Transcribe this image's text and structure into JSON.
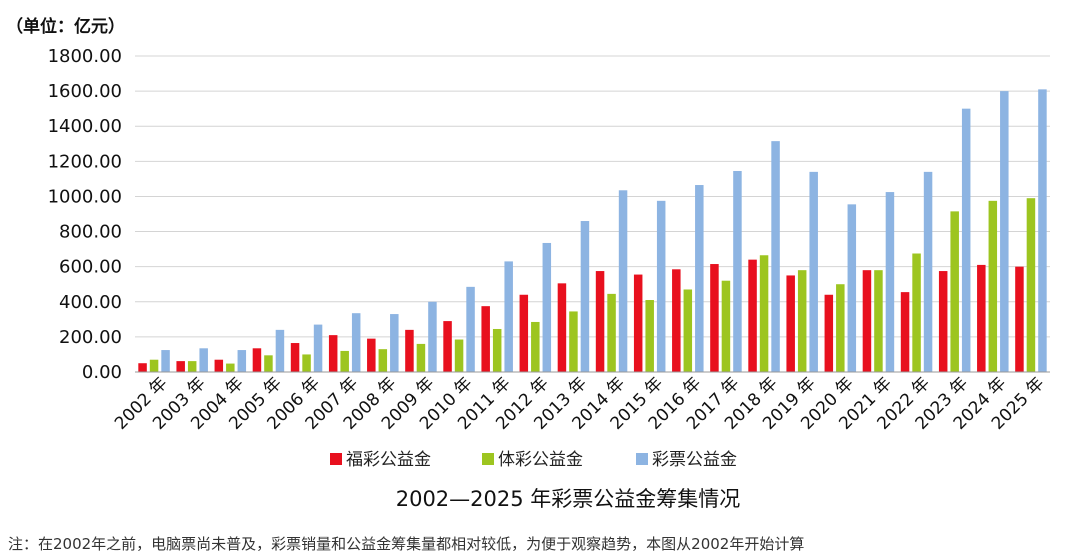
{
  "chart_data": {
    "type": "bar",
    "title": "2002—2025 年彩票公益金筹集情况",
    "unit_label": "（单位：亿元）",
    "note": "注：在2002年之前，电脑票尚未普及，彩票销量和公益金筹集量都相对较低，为便于观察趋势，本图从2002年开始计算",
    "categories": [
      "2002 年",
      "2003 年",
      "2004 年",
      "2005 年",
      "2006 年",
      "2007 年",
      "2008 年",
      "2009 年",
      "2010 年",
      "2011 年",
      "2012 年",
      "2013 年",
      "2014 年",
      "2015 年",
      "2016 年",
      "2017 年",
      "2018 年",
      "2019 年",
      "2020 年",
      "2021 年",
      "2022 年",
      "2023 年",
      "2024 年",
      "2025 年"
    ],
    "y_ticks": [
      "0.00",
      "200.00",
      "400.00",
      "600.00",
      "800.00",
      "1000.00",
      "1200.00",
      "1400.00",
      "1600.00",
      "1800.00"
    ],
    "ylim": [
      0,
      1800
    ],
    "grid": true,
    "legend_position": "bottom",
    "series": [
      {
        "name": "福彩公益金",
        "color": "#e8101e",
        "values": [
          50,
          62,
          70,
          135,
          165,
          210,
          190,
          240,
          290,
          375,
          440,
          505,
          575,
          555,
          585,
          615,
          640,
          550,
          440,
          580,
          455,
          575,
          610,
          600
        ]
      },
      {
        "name": "体彩公益金",
        "color": "#9dc520",
        "values": [
          70,
          62,
          48,
          95,
          100,
          120,
          130,
          160,
          185,
          245,
          285,
          345,
          445,
          410,
          470,
          520,
          665,
          580,
          500,
          580,
          675,
          915,
          975,
          990
        ]
      },
      {
        "name": "彩票公益金",
        "color": "#8db4e2",
        "values": [
          125,
          135,
          125,
          240,
          270,
          335,
          330,
          400,
          485,
          630,
          735,
          860,
          1035,
          975,
          1065,
          1145,
          1315,
          1140,
          955,
          1025,
          1140,
          1500,
          1600,
          1610
        ]
      }
    ]
  }
}
